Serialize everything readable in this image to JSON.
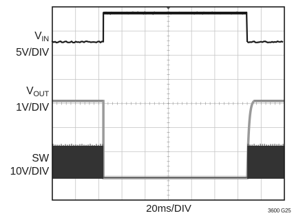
{
  "chart_data": {
    "type": "line",
    "title": "",
    "xlabel": "20ms/DIV",
    "figure_id": "3600 G25",
    "grid": true,
    "divisions": {
      "x": 10,
      "y": 8
    },
    "time_per_div_ms": 20,
    "x": [
      0,
      20,
      40,
      60,
      80,
      100,
      120,
      140,
      160,
      180,
      200
    ],
    "x_unit": "ms",
    "series": [
      {
        "key": "vin",
        "name": "VIN",
        "label_main": "V",
        "label_sub": "IN",
        "scale": "5V/DIV",
        "color": "#1a1a1a",
        "values": [
          "low",
          "low",
          "low",
          "low",
          "low",
          "high",
          "high",
          "high",
          "high",
          "low",
          "low"
        ]
      },
      {
        "key": "vout",
        "name": "VOUT",
        "label_main": "V",
        "label_sub": "OUT",
        "scale": "1V/DIV",
        "color": "#9a9a9a",
        "values": [
          "regulated",
          "regulated",
          "regulated",
          "regulated",
          "regulated",
          "0",
          "0",
          "0",
          "0",
          "soft-start rise",
          "regulated"
        ]
      },
      {
        "key": "sw",
        "name": "SW",
        "label_main": "SW",
        "label_sub": "",
        "scale": "10V/DIV",
        "color": "#333333",
        "values": [
          "switching",
          "switching",
          "switching",
          "switching",
          "switching",
          "0",
          "0",
          "0",
          "0",
          "switching",
          "switching"
        ]
      }
    ]
  }
}
